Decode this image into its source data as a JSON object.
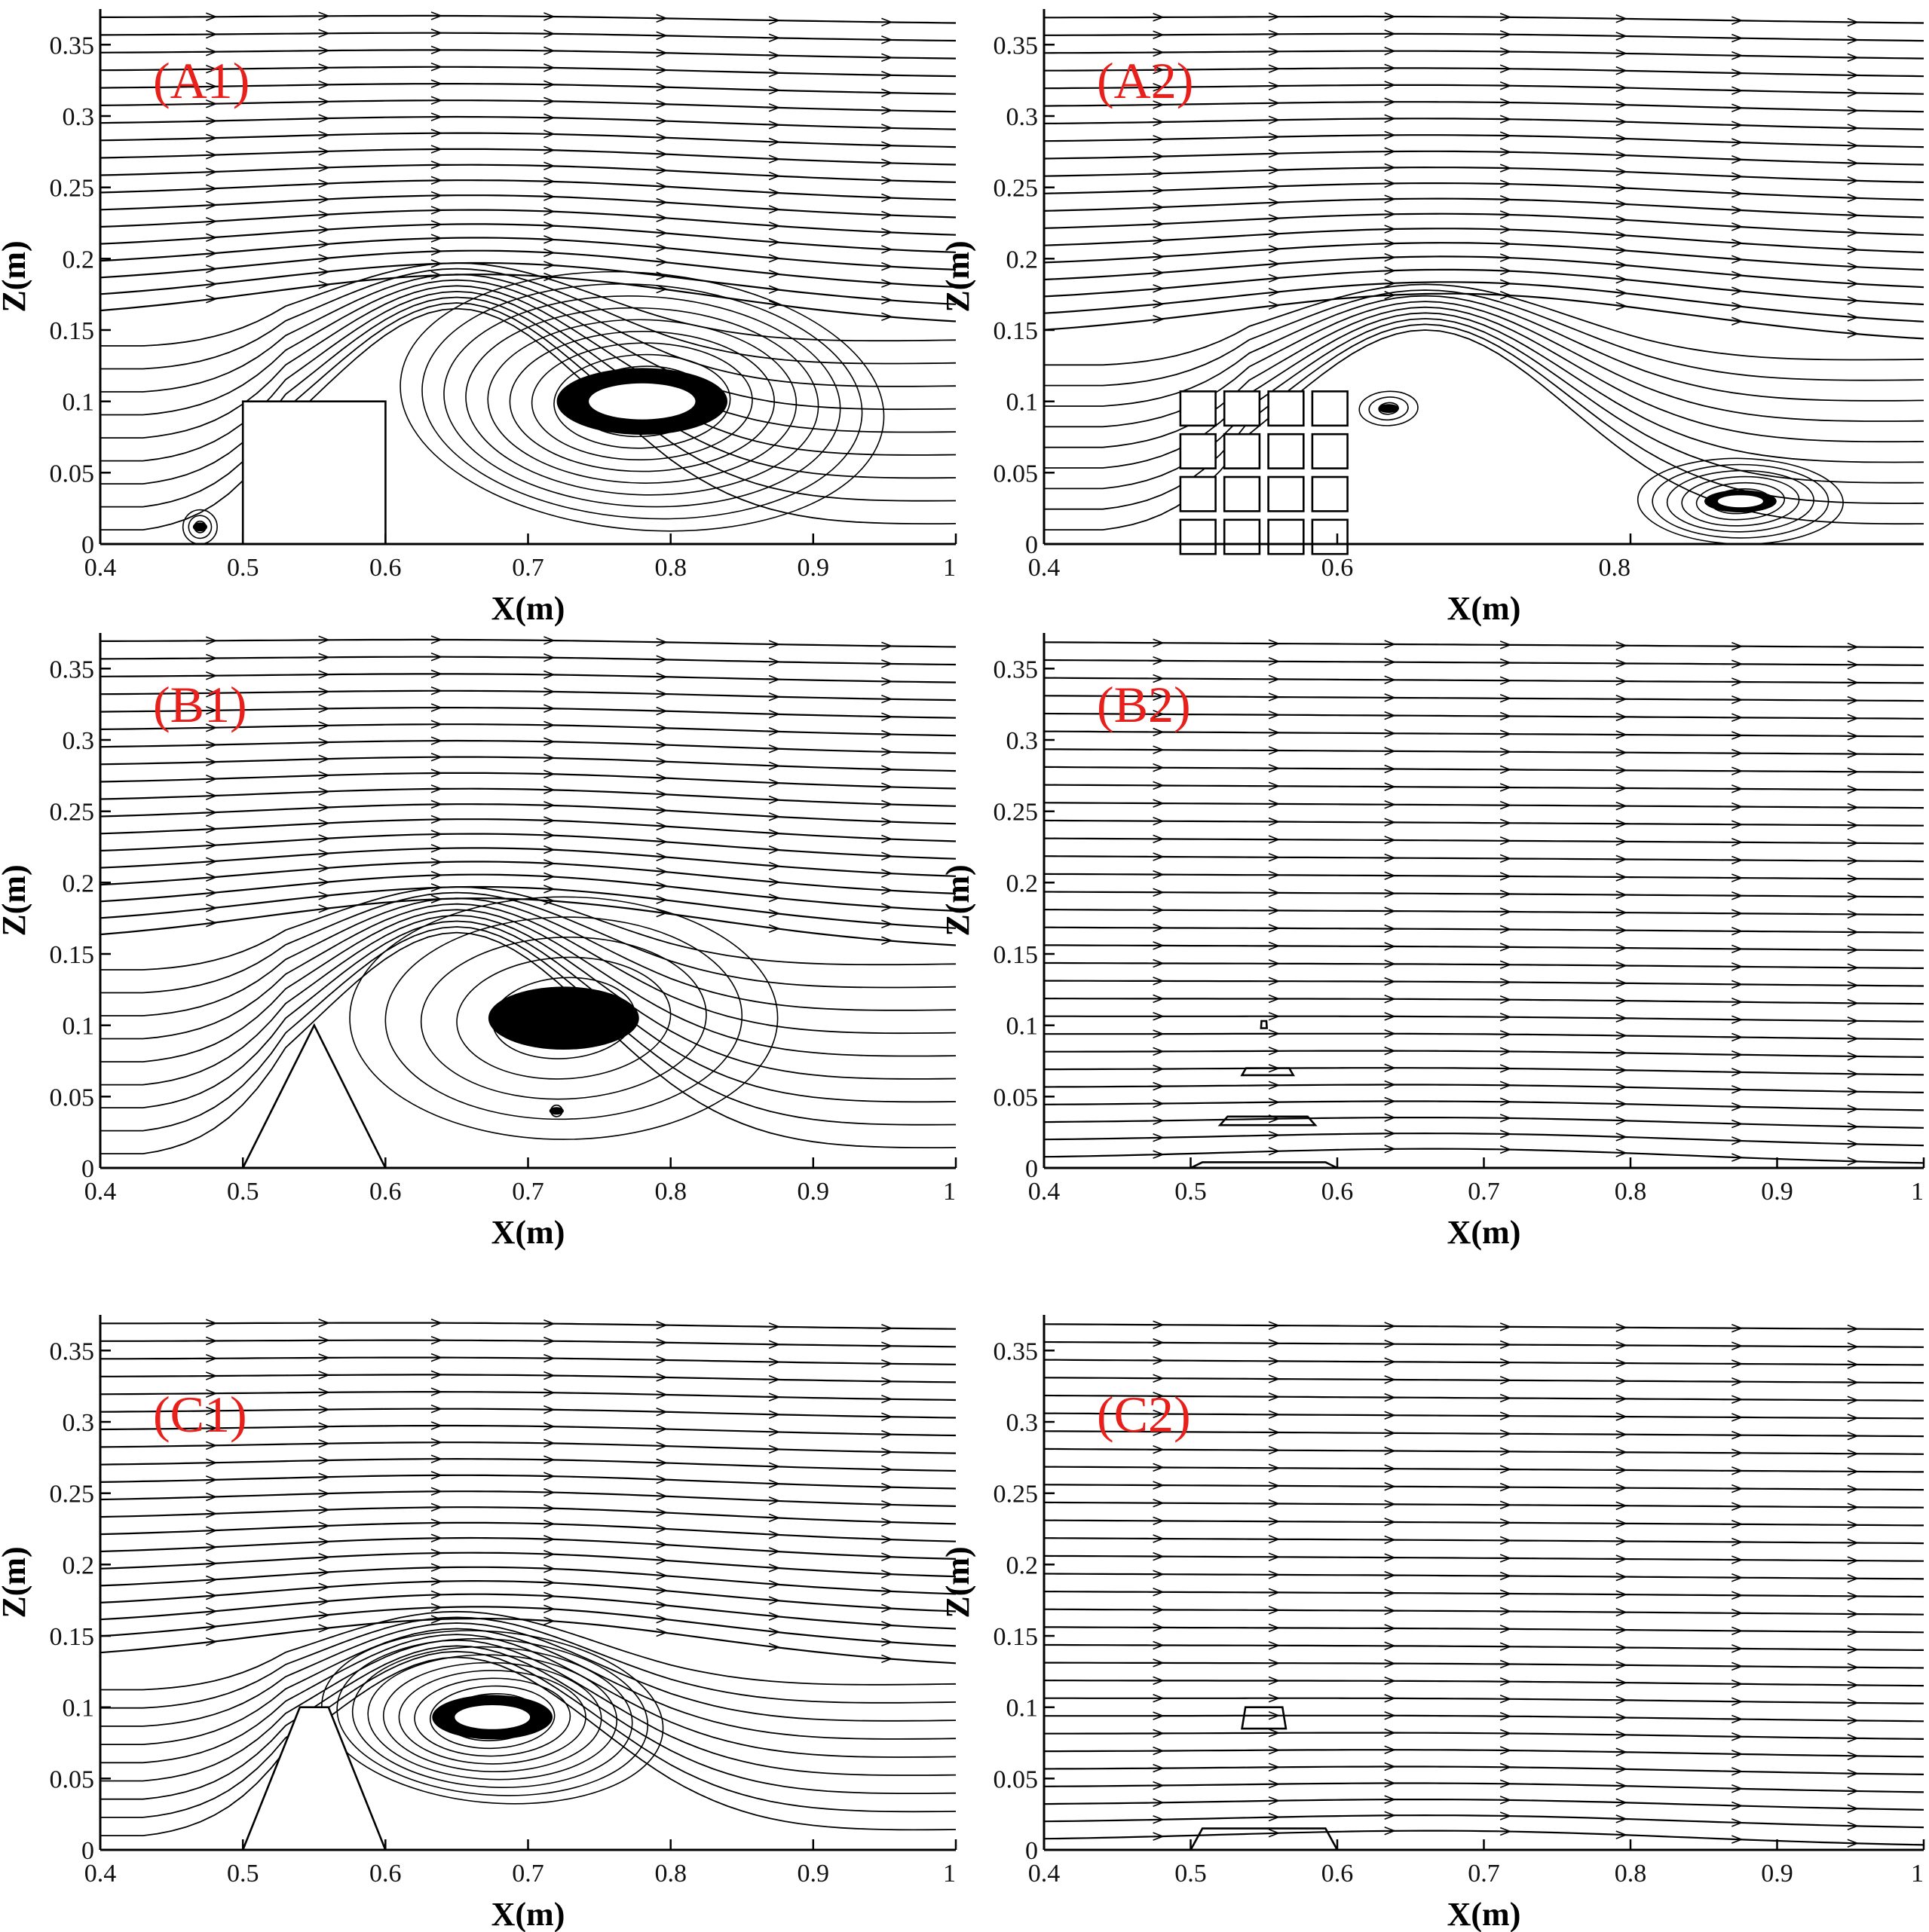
{
  "colors": {
    "label": "#e8201b",
    "line": "#000000",
    "background": "#ffffff"
  },
  "chart_data": [
    {
      "type": "streamline",
      "panel": "(A1)",
      "xlabel": "X(m)",
      "ylabel": "Z(m)",
      "xlim": [
        0.4,
        1.0
      ],
      "ylim": [
        0,
        0.375
      ],
      "xticks": [
        0.4,
        0.5,
        0.6,
        0.7,
        0.8,
        0.9,
        1.0
      ],
      "xtick_labels": [
        "0.4",
        "0.5",
        "0.6",
        "0.7",
        "0.8",
        "0.9",
        "1"
      ],
      "yticks": [
        0,
        0.05,
        0.1,
        0.15,
        0.2,
        0.25,
        0.3,
        0.35
      ],
      "ytick_labels": [
        "0",
        "0.05",
        "0.1",
        "0.15",
        "0.2",
        "0.25",
        "0.3",
        "0.35"
      ],
      "obstacle": {
        "shape": "rectangle",
        "x_range": [
          0.5,
          0.6
        ],
        "height": 0.1
      },
      "separation_height": 0.155,
      "vortices": [
        {
          "x": 0.78,
          "z": 0.1,
          "rx": 0.17,
          "rz": 0.09,
          "loops": 11,
          "core": true
        },
        {
          "x": 0.47,
          "z": 0.012,
          "rx": 0.012,
          "rz": 0.012,
          "loops": 3,
          "core": true
        }
      ]
    },
    {
      "type": "streamline",
      "panel": "(A2)",
      "xlabel": "X(m)",
      "ylabel": "Z(m)",
      "xlim": [
        0.4,
        1.0
      ],
      "ylim": [
        0,
        0.375
      ],
      "xticks": [
        0.4,
        0.6,
        0.8
      ],
      "xtick_labels": [
        "0.4",
        "0.6",
        "0.8"
      ],
      "yticks": [
        0,
        0.05,
        0.1,
        0.15,
        0.2,
        0.25,
        0.3,
        0.35
      ],
      "ytick_labels": [
        "0",
        "0.05",
        "0.1",
        "0.15",
        "0.2",
        "0.25",
        "0.3",
        "0.35"
      ],
      "obstacle": {
        "shape": "block-array",
        "x_centers": [
          0.505,
          0.535,
          0.565,
          0.595
        ],
        "z_centers": [
          0.095,
          0.065,
          0.035,
          0.005
        ],
        "size": 0.012
      },
      "separation_height": 0.14,
      "vortices": [
        {
          "x": 0.635,
          "z": 0.095,
          "rx": 0.02,
          "rz": 0.012,
          "loops": 3,
          "core": true
        },
        {
          "x": 0.875,
          "z": 0.03,
          "rx": 0.07,
          "rz": 0.03,
          "loops": 7,
          "core": true
        }
      ]
    },
    {
      "type": "streamline",
      "panel": "(B1)",
      "xlabel": "X(m)",
      "ylabel": "Z(m)",
      "xlim": [
        0.4,
        1.0
      ],
      "ylim": [
        0,
        0.375
      ],
      "xticks": [
        0.4,
        0.5,
        0.6,
        0.7,
        0.8,
        0.9,
        1.0
      ],
      "xtick_labels": [
        "0.4",
        "0.5",
        "0.6",
        "0.7",
        "0.8",
        "0.9",
        "1"
      ],
      "yticks": [
        0,
        0.05,
        0.1,
        0.15,
        0.2,
        0.25,
        0.3,
        0.35
      ],
      "ytick_labels": [
        "0",
        "0.05",
        "0.1",
        "0.15",
        "0.2",
        "0.25",
        "0.3",
        "0.35"
      ],
      "obstacle": {
        "shape": "triangle",
        "x_range": [
          0.5,
          0.6
        ],
        "apex_x": 0.55,
        "height": 0.1
      },
      "separation_height": 0.155,
      "vortices": [
        {
          "x": 0.725,
          "z": 0.105,
          "rx": 0.15,
          "rz": 0.085,
          "loops": 6,
          "core": true
        },
        {
          "x": 0.72,
          "z": 0.04,
          "rx": 0.004,
          "rz": 0.004,
          "loops": 1,
          "core": true
        }
      ]
    },
    {
      "type": "streamline",
      "panel": "(B2)",
      "xlabel": "X(m)",
      "ylabel": "Z(m)",
      "xlim": [
        0.4,
        1.0
      ],
      "ylim": [
        0,
        0.375
      ],
      "xticks": [
        0.4,
        0.5,
        0.6,
        0.7,
        0.8,
        0.9,
        1.0
      ],
      "xtick_labels": [
        "0.4",
        "0.5",
        "0.6",
        "0.7",
        "0.8",
        "0.9",
        "1"
      ],
      "yticks": [
        0,
        0.05,
        0.1,
        0.15,
        0.2,
        0.25,
        0.3,
        0.35
      ],
      "ytick_labels": [
        "0",
        "0.05",
        "0.1",
        "0.15",
        "0.2",
        "0.25",
        "0.3",
        "0.35"
      ],
      "obstacle": {
        "shape": "stacked-layers",
        "layers": [
          {
            "x_range": [
              0.52,
              0.585
            ],
            "z_range": [
              0.03,
              0.036
            ]
          },
          {
            "x_range": [
              0.535,
              0.57
            ],
            "z_range": [
              0.065,
              0.07
            ]
          },
          {
            "x_range": [
              0.548,
              0.552
            ],
            "z_range": [
              0.098,
              0.103
            ]
          },
          {
            "x_range": [
              0.5,
              0.6
            ],
            "z_range": [
              0.0,
              0.004
            ]
          }
        ]
      },
      "separation_height": 0,
      "vortices": []
    },
    {
      "type": "streamline",
      "panel": "(C1)",
      "xlabel": "X(m)",
      "ylabel": "Z(m)",
      "xlim": [
        0.4,
        1.0
      ],
      "ylim": [
        0,
        0.375
      ],
      "xticks": [
        0.4,
        0.5,
        0.6,
        0.7,
        0.8,
        0.9,
        1.0
      ],
      "xtick_labels": [
        "0.4",
        "0.5",
        "0.6",
        "0.7",
        "0.8",
        "0.9",
        "1"
      ],
      "yticks": [
        0,
        0.05,
        0.1,
        0.15,
        0.2,
        0.25,
        0.3,
        0.35
      ],
      "ytick_labels": [
        "0",
        "0.05",
        "0.1",
        "0.15",
        "0.2",
        "0.25",
        "0.3",
        "0.35"
      ],
      "obstacle": {
        "shape": "trapezoid",
        "x_range": [
          0.5,
          0.6
        ],
        "top_range": [
          0.54,
          0.56
        ],
        "height": 0.1
      },
      "separation_height": 0.125,
      "vortices": [
        {
          "x": 0.675,
          "z": 0.093,
          "rx": 0.12,
          "rz": 0.06,
          "loops": 11,
          "core": true
        }
      ]
    },
    {
      "type": "streamline",
      "panel": "(C2)",
      "xlabel": "X(m)",
      "ylabel": "Z(m)",
      "xlim": [
        0.4,
        1.0
      ],
      "ylim": [
        0,
        0.375
      ],
      "xticks": [
        0.4,
        0.5,
        0.6,
        0.7,
        0.8,
        0.9,
        1.0
      ],
      "xtick_labels": [
        "0.4",
        "0.5",
        "0.6",
        "0.7",
        "0.8",
        "0.9",
        "1"
      ],
      "yticks": [
        0,
        0.05,
        0.1,
        0.15,
        0.2,
        0.25,
        0.3,
        0.35
      ],
      "ytick_labels": [
        "0",
        "0.05",
        "0.1",
        "0.15",
        "0.2",
        "0.25",
        "0.3",
        "0.35"
      ],
      "obstacle": {
        "shape": "stacked-layers",
        "layers": [
          {
            "x_range": [
              0.5,
              0.6
            ],
            "z_range": [
              0.0,
              0.015
            ]
          },
          {
            "x_range": [
              0.535,
              0.565
            ],
            "z_range": [
              0.085,
              0.1
            ]
          }
        ]
      },
      "separation_height": 0,
      "vortices": []
    }
  ]
}
